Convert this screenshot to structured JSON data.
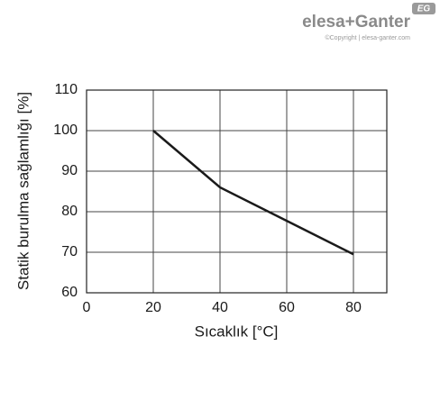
{
  "chart_data": {
    "type": "line",
    "x_label": "Sıcaklık [°C]",
    "y_label": "Statik burulma sağlamlığı [%]",
    "x": [
      20,
      40,
      80
    ],
    "series": [
      {
        "color": "#1a1a1a",
        "values": [
          100,
          86,
          69.5
        ]
      }
    ],
    "xlim": [
      0,
      90
    ],
    "xticks": [
      0,
      20,
      40,
      60,
      80
    ],
    "ylim": [
      60,
      110
    ],
    "yticks": [
      60,
      70,
      80,
      90,
      100,
      110
    ],
    "grid": true
  },
  "logo": {
    "brand": "elesa+Ganter",
    "copyright": "©Copyright | elesa-ganter.com",
    "badge": "EG"
  }
}
